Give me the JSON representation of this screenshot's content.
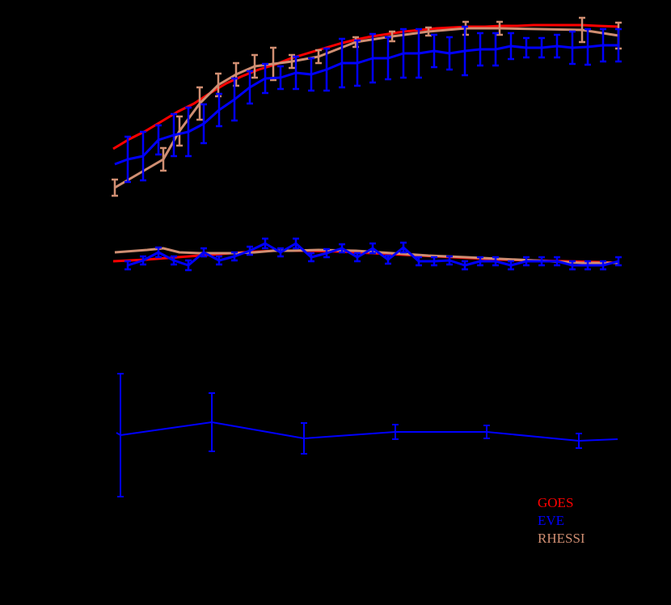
{
  "chart_data": [
    {
      "type": "line",
      "panel": "top",
      "title": "",
      "xlabel": "",
      "ylabel": "",
      "grid": false,
      "background": "#000000",
      "note": "Axes, ticks and labels are rendered in black on black background and are not visible; coordinates given in pixel space (x,y).",
      "series": [
        {
          "name": "GOES",
          "color": "#ff0000",
          "error_bars": false,
          "points": [
            [
              140,
              184
            ],
            [
              160,
              172
            ],
            [
              180,
              162
            ],
            [
              200,
              150
            ],
            [
              220,
              138
            ],
            [
              240,
              128
            ],
            [
              260,
              115
            ],
            [
              280,
              103
            ],
            [
              300,
              94
            ],
            [
              320,
              86
            ],
            [
              340,
              80
            ],
            [
              360,
              72
            ],
            [
              380,
              66
            ],
            [
              400,
              60
            ],
            [
              420,
              54
            ],
            [
              440,
              49
            ],
            [
              460,
              45
            ],
            [
              480,
              42
            ],
            [
              500,
              39
            ],
            [
              520,
              37
            ],
            [
              540,
              35
            ],
            [
              560,
              34
            ],
            [
              580,
              33
            ],
            [
              600,
              33
            ],
            [
              620,
              32
            ],
            [
              640,
              32
            ],
            [
              660,
              31
            ],
            [
              680,
              31
            ],
            [
              700,
              31
            ],
            [
              720,
              31
            ],
            [
              740,
              32
            ],
            [
              765,
              33
            ]
          ]
        },
        {
          "name": "RHESSI",
          "color": "#d08e72",
          "error_bars": true,
          "points": [
            [
              142,
              232,
              10
            ],
            [
              202,
              197,
              14
            ],
            [
              222,
              162,
              18
            ],
            [
              247,
              128,
              20
            ],
            [
              270,
              105,
              14
            ],
            [
              292,
              92,
              14
            ],
            [
              315,
              82,
              14
            ],
            [
              338,
              79,
              20
            ],
            [
              361,
              76,
              8
            ],
            [
              394,
              70,
              8
            ],
            [
              440,
              52,
              6
            ],
            [
              485,
              45,
              6
            ],
            [
              530,
              39,
              5
            ],
            [
              576,
              35,
              8
            ],
            [
              618,
              35,
              8
            ],
            [
              720,
              37,
              15
            ],
            [
              765,
              44,
              16
            ]
          ]
        },
        {
          "name": "EVE",
          "color": "#0000ff",
          "error_bars": true,
          "points": [
            [
              142,
              203,
              0
            ],
            [
              158,
              197,
              28
            ],
            [
              177,
              193,
              30
            ],
            [
              196,
              173,
              18
            ],
            [
              215,
              167,
              26
            ],
            [
              233,
              163,
              30
            ],
            [
              252,
              153,
              24
            ],
            [
              271,
              136,
              20
            ],
            [
              290,
              123,
              26
            ],
            [
              309,
              108,
              20
            ],
            [
              328,
              97,
              18
            ],
            [
              347,
              96,
              14
            ],
            [
              366,
              90,
              20
            ],
            [
              385,
              92,
              20
            ],
            [
              404,
              86,
              26
            ],
            [
              423,
              78,
              30
            ],
            [
              442,
              78,
              28
            ],
            [
              461,
              72,
              30
            ],
            [
              480,
              72,
              26
            ],
            [
              499,
              66,
              30
            ],
            [
              518,
              66,
              30
            ],
            [
              537,
              63,
              20
            ],
            [
              556,
              66,
              20
            ],
            [
              575,
              63,
              30
            ],
            [
              594,
              61,
              20
            ],
            [
              613,
              61,
              20
            ],
            [
              632,
              57,
              16
            ],
            [
              651,
              59,
              12
            ],
            [
              670,
              59,
              12
            ],
            [
              689,
              57,
              14
            ],
            [
              708,
              59,
              20
            ],
            [
              727,
              58,
              22
            ],
            [
              746,
              56,
              20
            ],
            [
              765,
              56,
              20
            ]
          ]
        }
      ]
    },
    {
      "type": "line",
      "panel": "middle",
      "title": "",
      "xlabel": "",
      "ylabel": "",
      "grid": false,
      "series": [
        {
          "name": "GOES",
          "color": "#ff0000",
          "error_bars": false,
          "points": [
            [
              140,
              323
            ],
            [
              180,
              321
            ],
            [
              220,
              318
            ],
            [
              260,
              315
            ],
            [
              300,
              312
            ],
            [
              340,
              310
            ],
            [
              380,
              310
            ],
            [
              420,
              311
            ],
            [
              460,
              313
            ],
            [
              500,
              315
            ],
            [
              540,
              317
            ],
            [
              580,
              319
            ],
            [
              620,
              321
            ],
            [
              660,
              322
            ],
            [
              700,
              323
            ],
            [
              740,
              324
            ],
            [
              765,
              325
            ]
          ]
        },
        {
          "name": "RHESSI",
          "color": "#d08e72",
          "error_bars": false,
          "points": [
            [
              142,
              312
            ],
            [
              182,
              309
            ],
            [
              202,
              307
            ],
            [
              222,
              312
            ],
            [
              247,
              313
            ],
            [
              270,
              313
            ],
            [
              292,
              313
            ],
            [
              315,
              312
            ],
            [
              338,
              310
            ],
            [
              361,
              310
            ],
            [
              394,
              309
            ],
            [
              440,
              310
            ],
            [
              485,
              313
            ],
            [
              530,
              316
            ],
            [
              576,
              318
            ],
            [
              618,
              320
            ],
            [
              660,
              322
            ],
            [
              720,
              325
            ],
            [
              765,
              325
            ]
          ]
        },
        {
          "name": "EVE",
          "color": "#0000ff",
          "error_bars": true,
          "points": [
            [
              158,
              328,
              5
            ],
            [
              177,
              322,
              5
            ],
            [
              196,
              312,
              6
            ],
            [
              215,
              322,
              5
            ],
            [
              233,
              328,
              6
            ],
            [
              252,
              312,
              5
            ],
            [
              271,
              322,
              5
            ],
            [
              290,
              317,
              5
            ],
            [
              309,
              310,
              5
            ],
            [
              328,
              301,
              6
            ],
            [
              347,
              312,
              5
            ],
            [
              366,
              301,
              6
            ],
            [
              385,
              318,
              5
            ],
            [
              404,
              313,
              5
            ],
            [
              423,
              307,
              5
            ],
            [
              442,
              318,
              5
            ],
            [
              461,
              307,
              6
            ],
            [
              480,
              321,
              5
            ],
            [
              499,
              306,
              6
            ],
            [
              518,
              323,
              5
            ],
            [
              537,
              323,
              5
            ],
            [
              556,
              322,
              5
            ],
            [
              575,
              328,
              5
            ],
            [
              594,
              323,
              5
            ],
            [
              613,
              323,
              5
            ],
            [
              632,
              328,
              5
            ],
            [
              651,
              323,
              5
            ],
            [
              670,
              323,
              5
            ],
            [
              689,
              323,
              5
            ],
            [
              708,
              328,
              5
            ],
            [
              727,
              328,
              5
            ],
            [
              746,
              328,
              5
            ],
            [
              765,
              323,
              5
            ]
          ]
        }
      ]
    },
    {
      "type": "line",
      "panel": "bottom",
      "title": "",
      "xlabel": "",
      "ylabel": "",
      "grid": false,
      "series": [
        {
          "name": "EVE",
          "color": "#0000ff",
          "error_bars": true,
          "points": [
            [
              144,
              535,
              0
            ],
            [
              149,
              538,
              76
            ],
            [
              262,
              522,
              36
            ],
            [
              376,
              542,
              19
            ],
            [
              489,
              534,
              9
            ],
            [
              602,
              534,
              8
            ],
            [
              716,
              545,
              9
            ],
            [
              764,
              543,
              0
            ]
          ]
        }
      ]
    }
  ],
  "legend": {
    "position": "lower right",
    "items": [
      {
        "label": "GOES",
        "color": "#ff0000"
      },
      {
        "label": "EVE",
        "color": "#0000ff"
      },
      {
        "label": "RHESSI",
        "color": "#d08e72"
      }
    ]
  }
}
